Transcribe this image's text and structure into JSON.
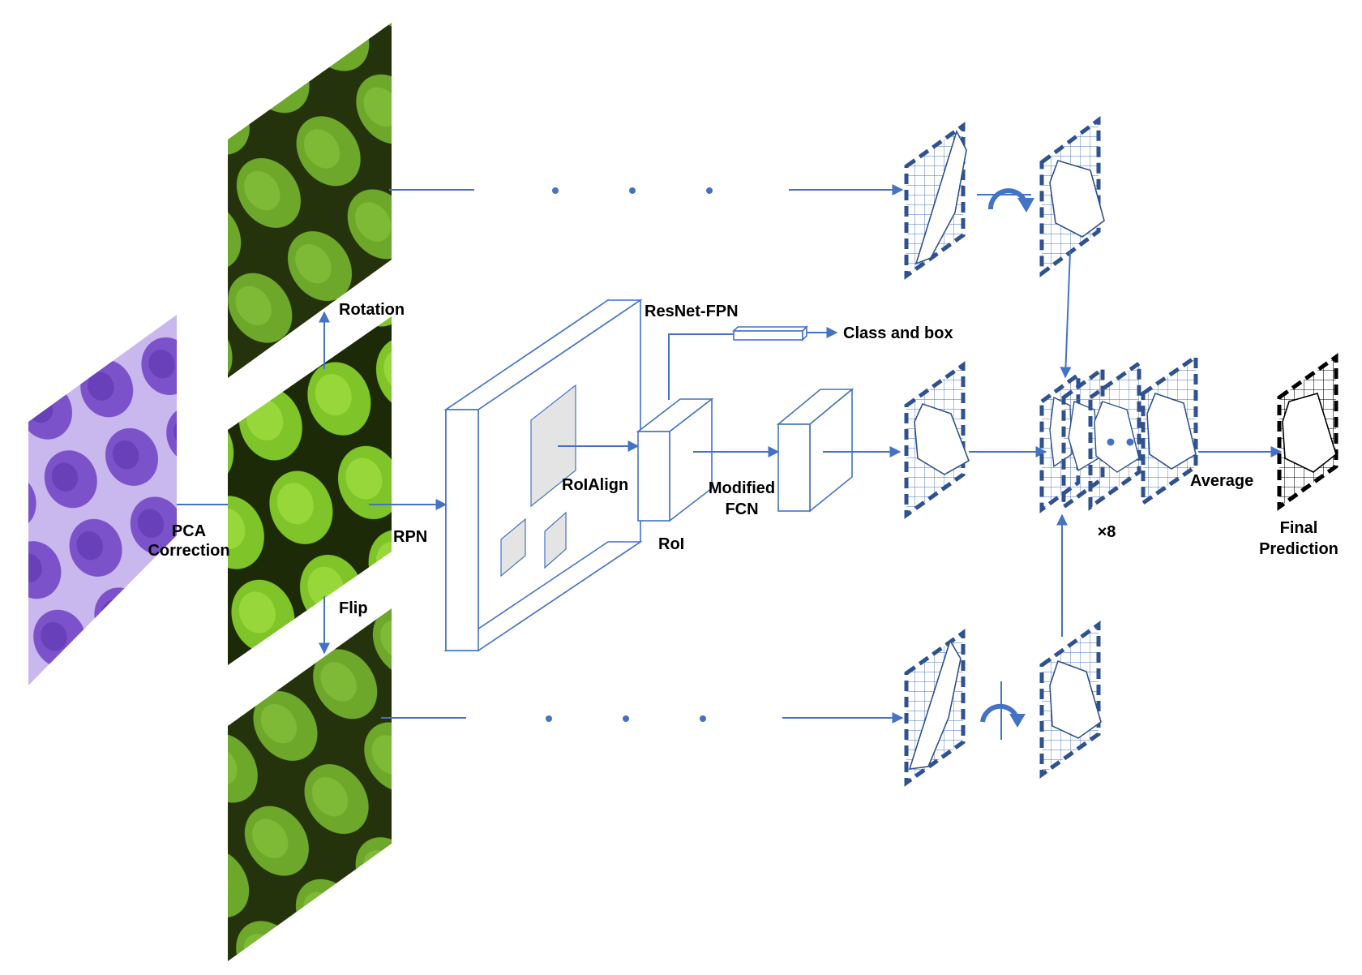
{
  "labels": {
    "pca_correction_line1": "PCA",
    "pca_correction_line2": "Correction",
    "rotation": "Rotation",
    "flip": "Flip",
    "rpn": "RPN",
    "roialign": "RoIAlign",
    "resnet_fpn": "ResNet-FPN",
    "class_and_box": "Class and box",
    "roi": "RoI",
    "modified_fcn_line1": "Modified",
    "modified_fcn_line2": "FCN",
    "times_eight": "×8",
    "average": "Average",
    "final_prediction_line1": "Final",
    "final_prediction_line2": "Prediction"
  },
  "colors": {
    "accent": "#4472c4",
    "stain_purple": "#7b52c9",
    "stain_background": "#c9b8ee",
    "fluorescent_green": "#6ea82a",
    "fluorescent_dark": "#1c2a08",
    "roi_gray": "#e4e4e4"
  },
  "icons": {
    "rotate_arrow": "curved-arrow-icon",
    "flip_arrow": "curved-arrow-icon"
  }
}
